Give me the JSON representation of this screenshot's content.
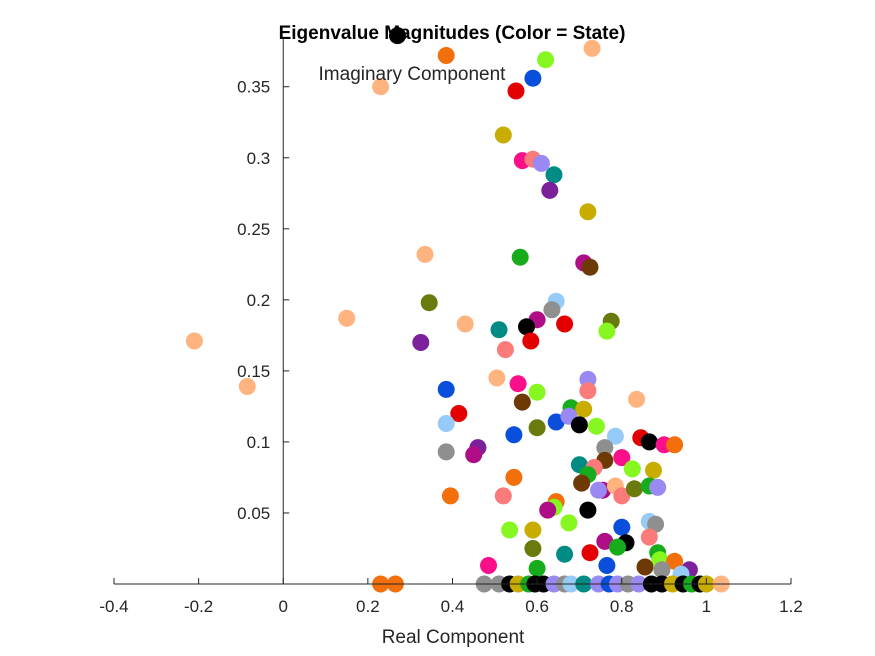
{
  "chart_data": {
    "type": "scatter",
    "title": "Eigenvalue Magnitudes (Color = State)",
    "xlabel": "Real Component",
    "ylabel": "Imaginary Component",
    "xlim": [
      -0.4,
      1.2
    ],
    "ylim": [
      0,
      0.385
    ],
    "xticks": [
      "-0.4",
      "-0.2",
      "0",
      "0.2",
      "0.4",
      "0.6",
      "0.8",
      "1",
      "1.2"
    ],
    "xtick_values": [
      -0.4,
      -0.2,
      0,
      0.2,
      0.4,
      0.6,
      0.8,
      1.0,
      1.2
    ],
    "yticks": [
      "0.05",
      "0.1",
      "0.15",
      "0.2",
      "0.25",
      "0.3",
      "0.35"
    ],
    "ytick_values": [
      0.05,
      0.1,
      0.15,
      0.2,
      0.25,
      0.3,
      0.35
    ],
    "grid": false,
    "axis_location": "origin",
    "marker": "filled-circle",
    "colors": {
      "black": "#000000",
      "orange": "#f26f0c",
      "peach": "#ffb37f",
      "lime": "#86f720",
      "red": "#e40000",
      "blue": "#0a4fdc",
      "mustard": "#c8ad00",
      "magenta": "#fb0f8a",
      "teal": "#008b84",
      "lavender": "#9a89f2",
      "purple": "#7c209c",
      "green": "#17ac1c",
      "darkmagenta": "#af0d86",
      "brown": "#6d3a05",
      "olive": "#6b7a0c",
      "lightblue": "#95cbf6",
      "gray": "#8f8f8f",
      "salmon": "#fb7a7a"
    },
    "points": [
      {
        "x": 0.27,
        "y": 0.386,
        "c": "black"
      },
      {
        "x": 0.385,
        "y": 0.372,
        "c": "orange"
      },
      {
        "x": 0.73,
        "y": 0.377,
        "c": "peach"
      },
      {
        "x": 0.62,
        "y": 0.369,
        "c": "lime"
      },
      {
        "x": 0.59,
        "y": 0.356,
        "c": "blue"
      },
      {
        "x": 0.55,
        "y": 0.347,
        "c": "red"
      },
      {
        "x": 0.23,
        "y": 0.35,
        "c": "peach"
      },
      {
        "x": 0.52,
        "y": 0.316,
        "c": "mustard"
      },
      {
        "x": 0.565,
        "y": 0.298,
        "c": "magenta"
      },
      {
        "x": 0.59,
        "y": 0.299,
        "c": "salmon"
      },
      {
        "x": 0.61,
        "y": 0.296,
        "c": "lavender"
      },
      {
        "x": 0.64,
        "y": 0.288,
        "c": "teal"
      },
      {
        "x": 0.63,
        "y": 0.277,
        "c": "purple"
      },
      {
        "x": 0.72,
        "y": 0.262,
        "c": "mustard"
      },
      {
        "x": 0.335,
        "y": 0.232,
        "c": "peach"
      },
      {
        "x": 0.56,
        "y": 0.23,
        "c": "green"
      },
      {
        "x": 0.71,
        "y": 0.226,
        "c": "darkmagenta"
      },
      {
        "x": 0.725,
        "y": 0.223,
        "c": "brown"
      },
      {
        "x": 0.345,
        "y": 0.198,
        "c": "olive"
      },
      {
        "x": 0.645,
        "y": 0.199,
        "c": "lightblue"
      },
      {
        "x": 0.635,
        "y": 0.193,
        "c": "gray"
      },
      {
        "x": 0.15,
        "y": 0.187,
        "c": "peach"
      },
      {
        "x": 0.43,
        "y": 0.183,
        "c": "peach"
      },
      {
        "x": 0.6,
        "y": 0.186,
        "c": "darkmagenta"
      },
      {
        "x": 0.665,
        "y": 0.183,
        "c": "red"
      },
      {
        "x": 0.775,
        "y": 0.185,
        "c": "olive"
      },
      {
        "x": 0.765,
        "y": 0.178,
        "c": "lime"
      },
      {
        "x": 0.51,
        "y": 0.179,
        "c": "teal"
      },
      {
        "x": 0.575,
        "y": 0.181,
        "c": "black"
      },
      {
        "x": 0.585,
        "y": 0.171,
        "c": "red"
      },
      {
        "x": -0.21,
        "y": 0.171,
        "c": "peach"
      },
      {
        "x": 0.325,
        "y": 0.17,
        "c": "purple"
      },
      {
        "x": 0.525,
        "y": 0.165,
        "c": "salmon"
      },
      {
        "x": 0.505,
        "y": 0.145,
        "c": "peach"
      },
      {
        "x": 0.555,
        "y": 0.141,
        "c": "magenta"
      },
      {
        "x": 0.72,
        "y": 0.144,
        "c": "lavender"
      },
      {
        "x": 0.72,
        "y": 0.136,
        "c": "salmon"
      },
      {
        "x": -0.085,
        "y": 0.139,
        "c": "peach"
      },
      {
        "x": 0.385,
        "y": 0.137,
        "c": "blue"
      },
      {
        "x": 0.6,
        "y": 0.135,
        "c": "lime"
      },
      {
        "x": 0.565,
        "y": 0.128,
        "c": "brown"
      },
      {
        "x": 0.835,
        "y": 0.13,
        "c": "peach"
      },
      {
        "x": 0.415,
        "y": 0.12,
        "c": "red"
      },
      {
        "x": 0.68,
        "y": 0.124,
        "c": "green"
      },
      {
        "x": 0.71,
        "y": 0.123,
        "c": "mustard"
      },
      {
        "x": 0.385,
        "y": 0.113,
        "c": "lightblue"
      },
      {
        "x": 0.645,
        "y": 0.114,
        "c": "blue"
      },
      {
        "x": 0.675,
        "y": 0.118,
        "c": "lavender"
      },
      {
        "x": 0.74,
        "y": 0.111,
        "c": "lime"
      },
      {
        "x": 0.6,
        "y": 0.11,
        "c": "olive"
      },
      {
        "x": 0.7,
        "y": 0.112,
        "c": "black"
      },
      {
        "x": 0.545,
        "y": 0.105,
        "c": "blue"
      },
      {
        "x": 0.785,
        "y": 0.104,
        "c": "lightblue"
      },
      {
        "x": 0.845,
        "y": 0.103,
        "c": "red"
      },
      {
        "x": 0.865,
        "y": 0.1,
        "c": "black"
      },
      {
        "x": 0.9,
        "y": 0.098,
        "c": "magenta"
      },
      {
        "x": 0.925,
        "y": 0.098,
        "c": "orange"
      },
      {
        "x": 0.76,
        "y": 0.096,
        "c": "gray"
      },
      {
        "x": 0.46,
        "y": 0.096,
        "c": "purple"
      },
      {
        "x": 0.385,
        "y": 0.093,
        "c": "gray"
      },
      {
        "x": 0.45,
        "y": 0.091,
        "c": "darkmagenta"
      },
      {
        "x": 0.8,
        "y": 0.089,
        "c": "magenta"
      },
      {
        "x": 0.76,
        "y": 0.087,
        "c": "brown"
      },
      {
        "x": 0.7,
        "y": 0.084,
        "c": "teal"
      },
      {
        "x": 0.735,
        "y": 0.082,
        "c": "salmon"
      },
      {
        "x": 0.825,
        "y": 0.081,
        "c": "lime"
      },
      {
        "x": 0.875,
        "y": 0.08,
        "c": "mustard"
      },
      {
        "x": 0.545,
        "y": 0.075,
        "c": "orange"
      },
      {
        "x": 0.72,
        "y": 0.077,
        "c": "green"
      },
      {
        "x": 0.705,
        "y": 0.071,
        "c": "brown"
      },
      {
        "x": 0.755,
        "y": 0.066,
        "c": "darkmagenta"
      },
      {
        "x": 0.745,
        "y": 0.066,
        "c": "lavender"
      },
      {
        "x": 0.785,
        "y": 0.069,
        "c": "peach"
      },
      {
        "x": 0.8,
        "y": 0.062,
        "c": "salmon"
      },
      {
        "x": 0.83,
        "y": 0.067,
        "c": "olive"
      },
      {
        "x": 0.865,
        "y": 0.069,
        "c": "green"
      },
      {
        "x": 0.885,
        "y": 0.068,
        "c": "lavender"
      },
      {
        "x": 0.395,
        "y": 0.062,
        "c": "orange"
      },
      {
        "x": 0.52,
        "y": 0.062,
        "c": "salmon"
      },
      {
        "x": 0.645,
        "y": 0.058,
        "c": "orange"
      },
      {
        "x": 0.64,
        "y": 0.054,
        "c": "lime"
      },
      {
        "x": 0.625,
        "y": 0.052,
        "c": "darkmagenta"
      },
      {
        "x": 0.72,
        "y": 0.052,
        "c": "black"
      },
      {
        "x": 0.865,
        "y": 0.044,
        "c": "lightblue"
      },
      {
        "x": 0.88,
        "y": 0.042,
        "c": "gray"
      },
      {
        "x": 0.675,
        "y": 0.043,
        "c": "lime"
      },
      {
        "x": 0.8,
        "y": 0.04,
        "c": "blue"
      },
      {
        "x": 0.535,
        "y": 0.038,
        "c": "lime"
      },
      {
        "x": 0.59,
        "y": 0.038,
        "c": "mustard"
      },
      {
        "x": 0.865,
        "y": 0.033,
        "c": "salmon"
      },
      {
        "x": 0.76,
        "y": 0.03,
        "c": "darkmagenta"
      },
      {
        "x": 0.81,
        "y": 0.029,
        "c": "black"
      },
      {
        "x": 0.79,
        "y": 0.026,
        "c": "green"
      },
      {
        "x": 0.59,
        "y": 0.025,
        "c": "olive"
      },
      {
        "x": 0.725,
        "y": 0.022,
        "c": "red"
      },
      {
        "x": 0.885,
        "y": 0.022,
        "c": "green"
      },
      {
        "x": 0.665,
        "y": 0.021,
        "c": "teal"
      },
      {
        "x": 0.89,
        "y": 0.017,
        "c": "lime"
      },
      {
        "x": 0.925,
        "y": 0.016,
        "c": "orange"
      },
      {
        "x": 0.765,
        "y": 0.013,
        "c": "blue"
      },
      {
        "x": 0.485,
        "y": 0.013,
        "c": "magenta"
      },
      {
        "x": 0.6,
        "y": 0.011,
        "c": "green"
      },
      {
        "x": 0.855,
        "y": 0.012,
        "c": "brown"
      },
      {
        "x": 0.895,
        "y": 0.01,
        "c": "gray"
      },
      {
        "x": 0.96,
        "y": 0.01,
        "c": "purple"
      },
      {
        "x": 0.94,
        "y": 0.007,
        "c": "lightblue"
      },
      {
        "x": 0.23,
        "y": 0.0,
        "c": "orange"
      },
      {
        "x": 0.265,
        "y": 0.0,
        "c": "orange"
      },
      {
        "x": 0.475,
        "y": 0.0,
        "c": "gray"
      },
      {
        "x": 0.51,
        "y": 0.0,
        "c": "gray"
      },
      {
        "x": 0.535,
        "y": 0.0,
        "c": "black"
      },
      {
        "x": 0.555,
        "y": 0.0,
        "c": "mustard"
      },
      {
        "x": 0.58,
        "y": 0.0,
        "c": "green"
      },
      {
        "x": 0.595,
        "y": 0.0,
        "c": "black"
      },
      {
        "x": 0.615,
        "y": 0.0,
        "c": "black"
      },
      {
        "x": 0.64,
        "y": 0.0,
        "c": "lavender"
      },
      {
        "x": 0.665,
        "y": 0.0,
        "c": "gray"
      },
      {
        "x": 0.68,
        "y": 0.0,
        "c": "lightblue"
      },
      {
        "x": 0.71,
        "y": 0.0,
        "c": "teal"
      },
      {
        "x": 0.745,
        "y": 0.0,
        "c": "lavender"
      },
      {
        "x": 0.77,
        "y": 0.0,
        "c": "blue"
      },
      {
        "x": 0.79,
        "y": 0.0,
        "c": "lavender"
      },
      {
        "x": 0.815,
        "y": 0.0,
        "c": "gray"
      },
      {
        "x": 0.84,
        "y": 0.0,
        "c": "lavender"
      },
      {
        "x": 0.87,
        "y": 0.0,
        "c": "black"
      },
      {
        "x": 0.895,
        "y": 0.0,
        "c": "black"
      },
      {
        "x": 0.92,
        "y": 0.0,
        "c": "mustard"
      },
      {
        "x": 0.945,
        "y": 0.0,
        "c": "black"
      },
      {
        "x": 0.965,
        "y": 0.0,
        "c": "green"
      },
      {
        "x": 0.985,
        "y": 0.0,
        "c": "black"
      },
      {
        "x": 1.0,
        "y": 0.0,
        "c": "mustard"
      },
      {
        "x": 1.035,
        "y": 0.0,
        "c": "peach"
      }
    ]
  }
}
